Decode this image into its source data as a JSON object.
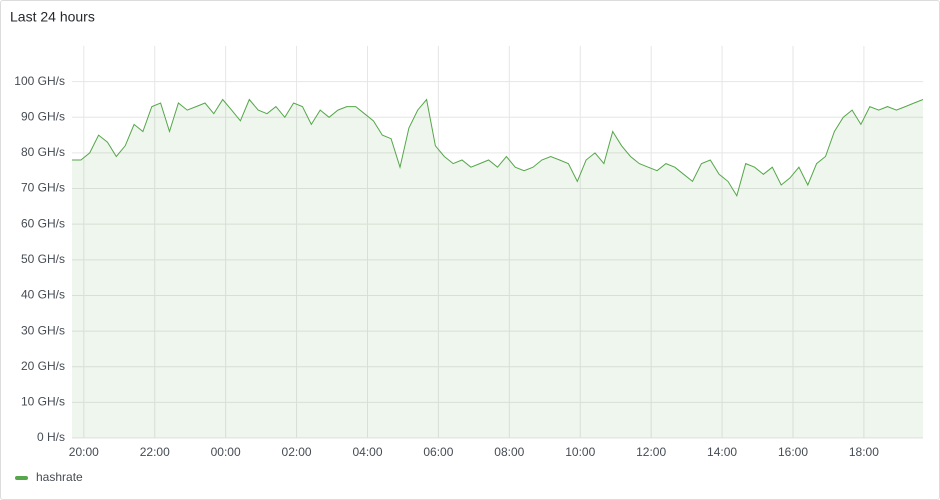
{
  "chart_data": {
    "type": "line",
    "title": "Last 24 hours",
    "x": [
      "19:40",
      "19:55",
      "20:10",
      "20:25",
      "20:40",
      "20:55",
      "21:10",
      "21:25",
      "21:40",
      "21:55",
      "22:10",
      "22:25",
      "22:40",
      "22:55",
      "23:10",
      "23:25",
      "23:40",
      "23:55",
      "00:10",
      "00:25",
      "00:40",
      "00:55",
      "01:10",
      "01:25",
      "01:40",
      "01:55",
      "02:10",
      "02:25",
      "02:40",
      "02:55",
      "03:10",
      "03:25",
      "03:40",
      "03:55",
      "04:10",
      "04:25",
      "04:40",
      "04:55",
      "05:10",
      "05:25",
      "05:40",
      "05:55",
      "06:10",
      "06:25",
      "06:40",
      "06:55",
      "07:10",
      "07:25",
      "07:40",
      "07:55",
      "08:10",
      "08:25",
      "08:40",
      "08:55",
      "09:10",
      "09:25",
      "09:40",
      "09:55",
      "10:10",
      "10:25",
      "10:40",
      "10:55",
      "11:10",
      "11:25",
      "11:40",
      "11:55",
      "12:10",
      "12:25",
      "12:40",
      "12:55",
      "13:10",
      "13:25",
      "13:40",
      "13:55",
      "14:10",
      "14:25",
      "14:40",
      "14:55",
      "15:10",
      "15:25",
      "15:40",
      "15:55",
      "16:10",
      "16:25",
      "16:40",
      "16:55",
      "17:10",
      "17:25",
      "17:40",
      "17:55",
      "18:10",
      "18:25",
      "18:40",
      "18:55",
      "19:10",
      "19:25",
      "19:40"
    ],
    "series": [
      {
        "name": "hashrate",
        "color": "#56a64b",
        "values": [
          78,
          78,
          80,
          85,
          83,
          79,
          82,
          88,
          86,
          93,
          94,
          86,
          94,
          92,
          93,
          94,
          91,
          95,
          92,
          89,
          95,
          92,
          91,
          93,
          90,
          94,
          93,
          88,
          92,
          90,
          92,
          93,
          93,
          91,
          89,
          85,
          84,
          76,
          87,
          92,
          95,
          82,
          79,
          77,
          78,
          76,
          77,
          78,
          76,
          79,
          76,
          75,
          76,
          78,
          79,
          78,
          77,
          72,
          78,
          80,
          77,
          86,
          82,
          79,
          77,
          76,
          75,
          77,
          76,
          74,
          72,
          77,
          78,
          74,
          72,
          68,
          77,
          76,
          74,
          76,
          71,
          73,
          76,
          71,
          77,
          79,
          86,
          90,
          92,
          88,
          93,
          92,
          93,
          92,
          93,
          94,
          95
        ]
      }
    ],
    "xlim": [
      "19:40",
      "19:40"
    ],
    "xticks": [
      "20:00",
      "22:00",
      "00:00",
      "02:00",
      "04:00",
      "06:00",
      "08:00",
      "10:00",
      "12:00",
      "14:00",
      "16:00",
      "18:00"
    ],
    "ylim": [
      0,
      110
    ],
    "yticks": [
      {
        "value": 0,
        "label": "0 H/s"
      },
      {
        "value": 10,
        "label": "10 GH/s"
      },
      {
        "value": 20,
        "label": "20 GH/s"
      },
      {
        "value": 30,
        "label": "30 GH/s"
      },
      {
        "value": 40,
        "label": "40 GH/s"
      },
      {
        "value": 50,
        "label": "50 GH/s"
      },
      {
        "value": 60,
        "label": "60 GH/s"
      },
      {
        "value": 70,
        "label": "70 GH/s"
      },
      {
        "value": 80,
        "label": "80 GH/s"
      },
      {
        "value": 90,
        "label": "90 GH/s"
      },
      {
        "value": 100,
        "label": "100 GH/s"
      }
    ],
    "grid": true,
    "legend": "bottom-left"
  }
}
